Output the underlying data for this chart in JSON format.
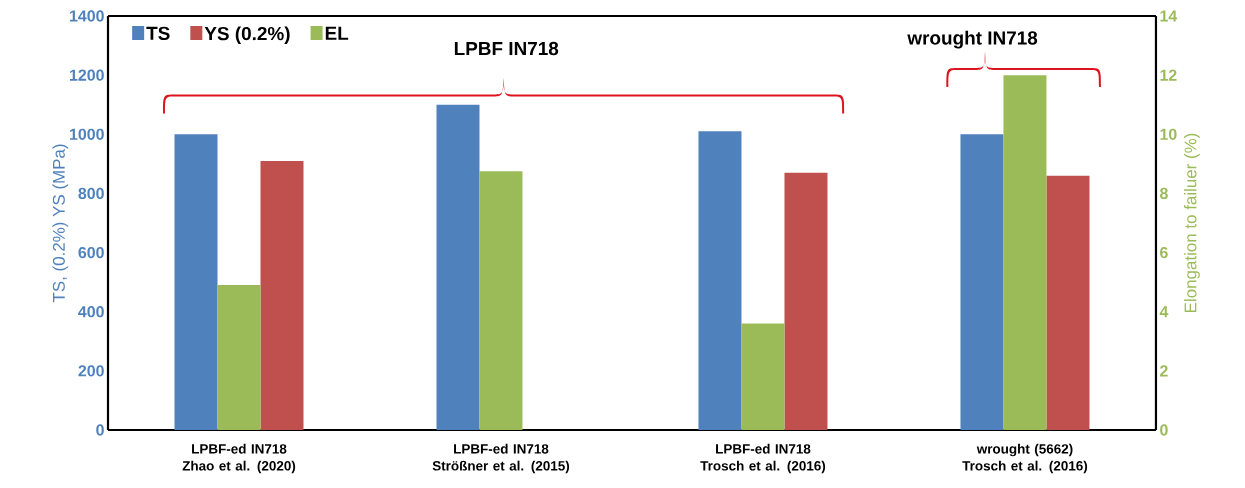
{
  "chart_data": {
    "type": "bar",
    "ylabel": "TS, (0.2%) YS (MPa)",
    "y2label": "Elongation to failuer (%)",
    "categories": [
      "LPBF-ed IN718  Zhao et al. (2020)",
      "LPBF-ed IN718  Strößner et al. (2015)",
      "LPBF-ed IN718 Trosch et al. (2016)",
      "wrought (5662) Trosch et al. (2016)"
    ],
    "series": [
      {
        "name": "TS",
        "color": "#4f81bd",
        "values": [
          1000,
          1100,
          1010,
          1000
        ]
      },
      {
        "name": "EL",
        "color": "#9bbb59",
        "axis": "y2",
        "values": [
          4.9,
          8.75,
          3.6,
          12.0
        ]
      },
      {
        "name": "YS (0.2%)",
        "color": "#c0504d",
        "values": [
          910,
          null,
          870,
          860
        ]
      }
    ],
    "ylim": [
      0,
      1400
    ],
    "yticks": [
      0,
      200,
      400,
      600,
      800,
      1000,
      1200,
      1400
    ],
    "y2lim": [
      0,
      14
    ],
    "y2ticks": [
      0,
      2,
      4,
      6,
      8,
      10,
      12,
      14
    ],
    "annotations": [
      "LPBF IN718",
      "wrought IN718"
    ],
    "legend": "top left",
    "grid": false
  }
}
